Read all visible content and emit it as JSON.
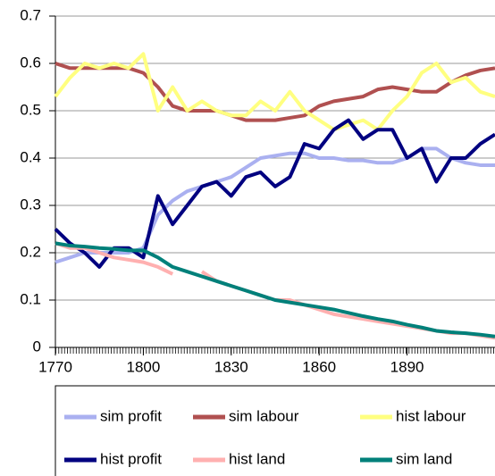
{
  "chart_data": {
    "type": "line",
    "x": [
      1770,
      1775,
      1780,
      1785,
      1790,
      1795,
      1800,
      1805,
      1810,
      1815,
      1820,
      1825,
      1830,
      1835,
      1840,
      1845,
      1850,
      1855,
      1860,
      1865,
      1870,
      1875,
      1880,
      1885,
      1890,
      1895,
      1900,
      1905,
      1910,
      1915,
      1920
    ],
    "xlim": [
      1770,
      1920
    ],
    "xticks": [
      1770,
      1800,
      1830,
      1860,
      1890
    ],
    "ylim": [
      0,
      0.7
    ],
    "yticks": [
      0,
      0.1,
      0.2,
      0.3,
      0.4,
      0.5,
      0.6,
      0.7
    ],
    "grid": true,
    "series": [
      {
        "name": "sim profit",
        "color": "#aab0f0",
        "values": [
          0.18,
          0.19,
          0.2,
          0.2,
          0.2,
          0.2,
          0.21,
          0.28,
          0.31,
          0.33,
          0.34,
          0.35,
          0.36,
          0.38,
          0.4,
          0.405,
          0.41,
          0.41,
          0.4,
          0.4,
          0.395,
          0.395,
          0.39,
          0.39,
          0.4,
          0.42,
          0.42,
          0.4,
          0.39,
          0.385,
          0.385
        ]
      },
      {
        "name": "sim labour",
        "color": "#b05050",
        "values": [
          0.6,
          0.59,
          0.59,
          0.59,
          0.59,
          0.59,
          0.58,
          0.55,
          0.51,
          0.5,
          0.5,
          0.5,
          0.49,
          0.48,
          0.48,
          0.48,
          0.485,
          0.49,
          0.51,
          0.52,
          0.525,
          0.53,
          0.545,
          0.55,
          0.545,
          0.54,
          0.54,
          0.56,
          0.575,
          0.585,
          0.59
        ]
      },
      {
        "name": "hist labour",
        "color": "#ffff80",
        "values": [
          0.53,
          0.57,
          0.6,
          0.59,
          0.6,
          0.59,
          0.62,
          0.5,
          0.55,
          0.5,
          0.52,
          0.5,
          0.49,
          0.49,
          0.52,
          0.5,
          0.54,
          0.5,
          0.48,
          0.46,
          0.47,
          0.48,
          0.46,
          0.5,
          0.53,
          0.58,
          0.6,
          0.56,
          0.57,
          0.54,
          0.53
        ]
      },
      {
        "name": "hist profit",
        "color": "#000080",
        "values": [
          0.25,
          0.22,
          0.2,
          0.17,
          0.21,
          0.21,
          0.19,
          0.32,
          0.26,
          0.3,
          0.34,
          0.35,
          0.32,
          0.36,
          0.37,
          0.34,
          0.36,
          0.43,
          0.42,
          0.46,
          0.48,
          0.44,
          0.46,
          0.46,
          0.4,
          0.42,
          0.35,
          0.4,
          0.4,
          0.43,
          0.45
        ]
      },
      {
        "name": "hist land",
        "color": "#ffb0b0",
        "values": [
          0.22,
          0.21,
          0.21,
          0.2,
          0.19,
          0.185,
          0.18,
          0.17,
          0.155,
          null,
          0.16,
          0.14,
          0.13,
          0.12,
          0.11,
          0.1,
          0.1,
          0.09,
          0.08,
          0.07,
          0.065,
          0.06,
          0.055,
          0.05,
          0.045,
          0.04,
          0.035,
          0.03,
          0.03,
          0.025,
          0.02
        ]
      },
      {
        "name": "sim land",
        "color": "#00807a",
        "values": [
          0.22,
          0.215,
          0.213,
          0.21,
          0.208,
          0.205,
          0.205,
          0.19,
          0.17,
          0.16,
          0.15,
          0.14,
          0.13,
          0.12,
          0.11,
          0.1,
          0.095,
          0.09,
          0.085,
          0.08,
          0.073,
          0.066,
          0.06,
          0.055,
          0.048,
          0.042,
          0.035,
          0.032,
          0.03,
          0.027,
          0.023
        ]
      }
    ]
  }
}
